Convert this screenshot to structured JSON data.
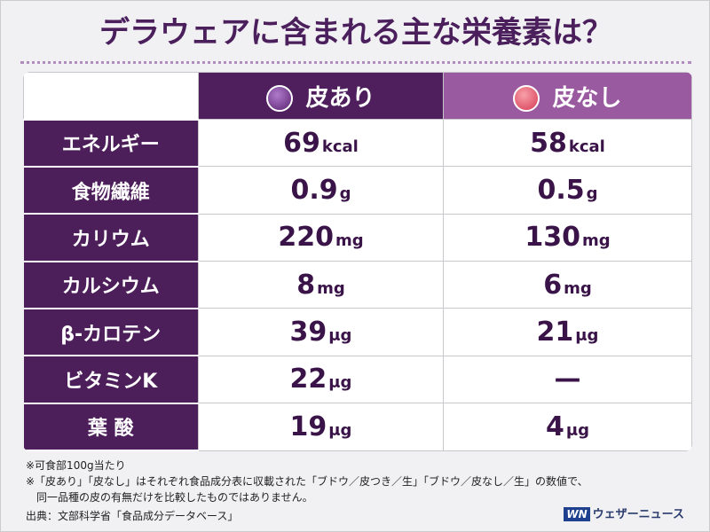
{
  "header": {
    "title": "デラウェアに含まれる主な栄養素は？"
  },
  "table": {
    "columns": [
      "皮あり",
      "皮なし"
    ],
    "rows": [
      {
        "label": "エネルギー",
        "cells": [
          {
            "value": 69,
            "unit": "kcal"
          },
          {
            "value": 58,
            "unit": "kcal"
          }
        ]
      },
      {
        "label": "食物繊維",
        "cells": [
          {
            "value": 0.9,
            "unit": "g"
          },
          {
            "value": 0.5,
            "unit": "g"
          }
        ]
      },
      {
        "label": "カリウム",
        "cells": [
          {
            "value": 220,
            "unit": "mg"
          },
          {
            "value": 130,
            "unit": "mg"
          }
        ]
      },
      {
        "label": "カルシウム",
        "cells": [
          {
            "value": 8,
            "unit": "mg"
          },
          {
            "value": 6,
            "unit": "mg"
          }
        ]
      },
      {
        "label": "β-カロテン",
        "cells": [
          {
            "value": 39,
            "unit": "μg"
          },
          {
            "value": 21,
            "unit": "μg"
          }
        ]
      },
      {
        "label": "ビタミンK",
        "cells": [
          {
            "value": 22,
            "unit": "μg"
          },
          {
            "value": "—"
          }
        ]
      },
      {
        "label": "葉 酸",
        "cells": [
          {
            "value": 19,
            "unit": "μg"
          },
          {
            "value": 4,
            "unit": "μg"
          }
        ]
      }
    ]
  },
  "notes": [
    "※可食部100g当たり",
    "※「皮あり」「皮なし」はそれぞれ食品成分表に収載された「ブドウ／皮つき／生」「ブドウ／皮なし／生」の数値で、",
    "　同一品種の皮の有無だけを比較したものではありません。"
  ],
  "source": "出典：文部科学省「食品成分データベース」",
  "logo": {
    "mark": "WN",
    "text": "ウェザーニュース"
  }
}
